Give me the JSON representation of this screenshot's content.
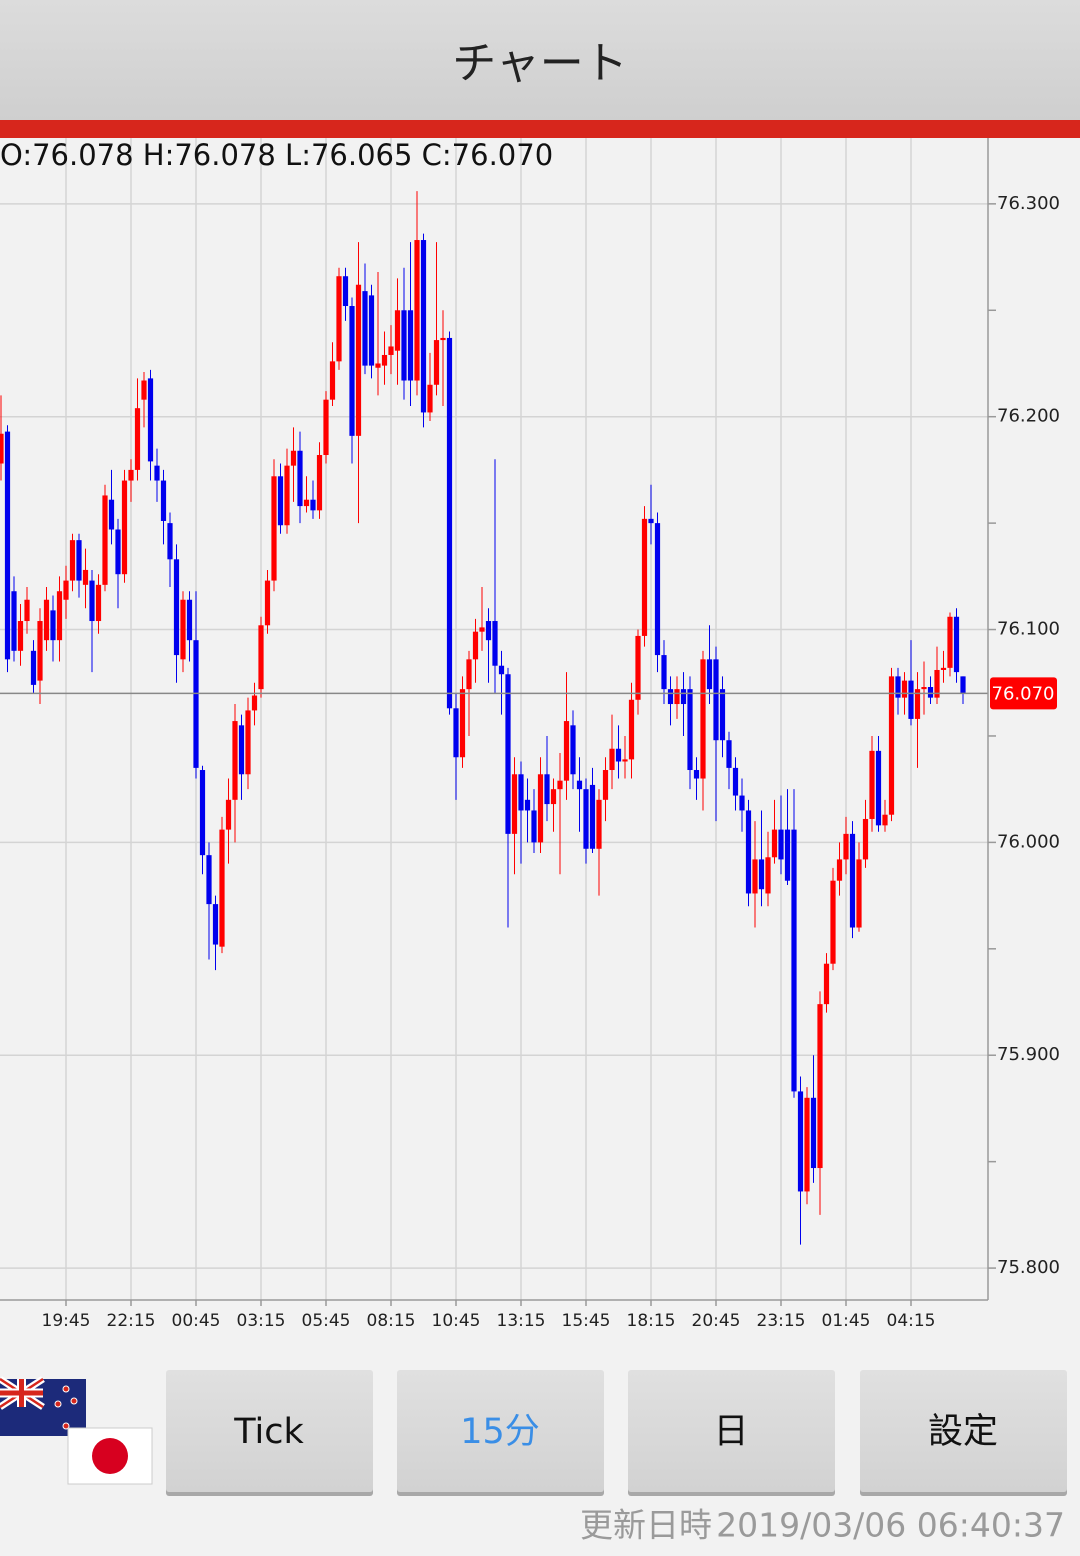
{
  "header": {
    "title": "チャート"
  },
  "ohlc_label": "O:76.078 H:76.078 L:76.065 C:76.070",
  "chart_data": {
    "type": "candlestick",
    "categories": [
      null,
      null,
      null,
      null,
      null,
      null,
      null,
      null,
      null,
      null,
      "19:45",
      null,
      null,
      null,
      null,
      null,
      null,
      null,
      null,
      null,
      "22:15",
      null,
      null,
      null,
      null,
      null,
      null,
      null,
      null,
      null,
      "00:45",
      null,
      null,
      null,
      null,
      null,
      null,
      null,
      null,
      null,
      "03:15",
      null,
      null,
      null,
      null,
      null,
      null,
      null,
      null,
      null,
      "05:45",
      null,
      null,
      null,
      null,
      null,
      null,
      null,
      null,
      null,
      "08:15",
      null,
      null,
      null,
      null,
      null,
      null,
      null,
      null,
      null,
      "10:45",
      null,
      null,
      null,
      null,
      null,
      null,
      null,
      null,
      null,
      "13:15",
      null,
      null,
      null,
      null,
      null,
      null,
      null,
      null,
      null,
      "15:45",
      null,
      null,
      null,
      null,
      null,
      null,
      null,
      null,
      null,
      "18:15",
      null,
      null,
      null,
      null,
      null,
      null,
      null,
      null,
      null,
      "20:45",
      null,
      null,
      null,
      null,
      null,
      null,
      null,
      null,
      null,
      "23:15",
      null,
      null,
      null,
      null,
      null,
      null,
      null,
      null,
      null,
      "01:45",
      null,
      null,
      null,
      null,
      null,
      null,
      null,
      null,
      null,
      "04:15",
      null,
      null,
      null,
      null,
      null,
      null,
      null,
      null
    ],
    "open": [
      76.178,
      76.193,
      76.118,
      76.09,
      76.104,
      76.09,
      76.076,
      76.095,
      76.109,
      76.095,
      76.114,
      76.123,
      76.142,
      76.121,
      76.123,
      76.104,
      76.121,
      76.161,
      76.147,
      76.126,
      76.17,
      76.175,
      76.208,
      76.218,
      76.177,
      76.17,
      76.15,
      76.133,
      76.086,
      76.114,
      76.095,
      76.034,
      75.994,
      75.971,
      75.951,
      76.006,
      76.02,
      76.055,
      76.032,
      76.062,
      76.072,
      76.102,
      76.123,
      76.172,
      76.149,
      76.177,
      76.184,
      76.158,
      76.161,
      76.156,
      76.182,
      76.208,
      76.226,
      76.266,
      76.252,
      76.191,
      76.259,
      76.257,
      76.223,
      76.224,
      76.229,
      76.231,
      76.25,
      76.25,
      76.217,
      76.283,
      76.202,
      76.215,
      76.236,
      76.237,
      76.063,
      76.04,
      76.072,
      76.086,
      76.099,
      76.104,
      76.104,
      76.083,
      76.079,
      76.004,
      76.032,
      76.02,
      76.015,
      76.0,
      76.032,
      76.018,
      76.025,
      76.029,
      76.055,
      76.029,
      76.025,
      76.027,
      75.997,
      76.02,
      76.034,
      76.044,
      76.038,
      76.039,
      76.067,
      76.097,
      76.152,
      76.15,
      76.088,
      76.072,
      76.065,
      76.072,
      76.072,
      76.034,
      76.03,
      76.086,
      76.086,
      76.072,
      76.048,
      76.035,
      76.022,
      76.015,
      75.976,
      75.992,
      75.976,
      75.993,
      76.006,
      76.006,
      76.006,
      75.883,
      75.836,
      75.88,
      75.847,
      75.924,
      75.943,
      75.982,
      75.992,
      76.004,
      75.96,
      75.992,
      76.011,
      76.043,
      76.008,
      76.013,
      76.078,
      76.068,
      76.076,
      76.058,
      76.072,
      76.073,
      76.068,
      76.081,
      76.082,
      76.106,
      76.078
    ],
    "high": [
      76.21,
      76.196,
      76.125,
      76.112,
      76.12,
      76.095,
      76.11,
      76.12,
      76.116,
      76.125,
      76.13,
      76.145,
      76.145,
      76.138,
      76.128,
      76.126,
      76.168,
      76.175,
      76.152,
      76.175,
      76.18,
      76.218,
      76.221,
      76.222,
      76.185,
      76.175,
      76.155,
      76.14,
      76.118,
      76.118,
      76.118,
      76.036,
      76.0,
      75.975,
      76.012,
      76.03,
      76.065,
      76.06,
      76.068,
      76.075,
      76.106,
      76.128,
      76.18,
      76.178,
      76.185,
      76.195,
      76.193,
      76.172,
      76.17,
      76.188,
      76.212,
      76.235,
      76.27,
      76.27,
      76.256,
      76.282,
      76.272,
      76.262,
      76.268,
      76.24,
      76.243,
      76.265,
      76.27,
      76.282,
      76.306,
      76.286,
      76.23,
      76.282,
      76.25,
      76.24,
      76.07,
      76.078,
      76.09,
      76.105,
      76.12,
      76.11,
      76.18,
      76.09,
      76.082,
      76.04,
      76.038,
      76.03,
      76.025,
      76.04,
      76.05,
      76.03,
      76.042,
      76.08,
      76.062,
      76.04,
      76.03,
      76.035,
      76.025,
      76.04,
      76.06,
      76.055,
      76.05,
      76.075,
      76.1,
      76.158,
      76.168,
      76.155,
      76.095,
      76.078,
      76.078,
      76.08,
      76.078,
      76.04,
      76.09,
      76.102,
      76.092,
      76.078,
      76.052,
      76.04,
      76.03,
      76.02,
      76.01,
      76.015,
      76.005,
      76.02,
      76.022,
      76.025,
      76.025,
      75.89,
      75.885,
      75.9,
      75.93,
      75.948,
      75.988,
      76.0,
      76.012,
      76.01,
      76.0,
      76.02,
      76.05,
      76.05,
      76.02,
      76.082,
      76.082,
      76.08,
      76.095,
      76.08,
      76.085,
      76.078,
      76.092,
      76.09,
      76.108,
      76.11,
      76.078
    ],
    "low": [
      76.17,
      76.08,
      76.085,
      76.083,
      76.098,
      76.07,
      76.065,
      76.09,
      76.085,
      76.085,
      76.105,
      76.118,
      76.115,
      76.11,
      76.08,
      76.098,
      76.118,
      76.14,
      76.11,
      76.122,
      76.16,
      76.17,
      76.195,
      76.17,
      76.16,
      76.14,
      76.12,
      76.075,
      76.08,
      76.085,
      76.03,
      75.985,
      75.945,
      75.94,
      75.948,
      75.99,
      76.0,
      76.02,
      76.025,
      76.055,
      76.068,
      76.098,
      76.118,
      76.145,
      76.145,
      76.16,
      76.15,
      76.155,
      76.152,
      76.152,
      76.178,
      76.205,
      76.222,
      76.245,
      76.178,
      76.15,
      76.22,
      76.218,
      76.21,
      76.215,
      76.22,
      76.215,
      76.208,
      76.205,
      76.21,
      76.195,
      76.198,
      76.21,
      76.205,
      76.06,
      76.02,
      76.035,
      76.05,
      76.075,
      76.09,
      76.075,
      76.07,
      76.06,
      75.96,
      75.985,
      75.99,
      76.0,
      75.995,
      75.995,
      76.01,
      76.005,
      75.985,
      76.02,
      76.025,
      76.005,
      75.99,
      75.995,
      75.975,
      76.01,
      76.025,
      76.03,
      76.03,
      76.03,
      76.06,
      76.092,
      76.14,
      76.08,
      76.065,
      76.055,
      76.058,
      76.05,
      76.025,
      76.02,
      76.015,
      76.065,
      76.01,
      76.04,
      76.025,
      76.015,
      76.005,
      75.97,
      75.96,
      75.97,
      75.97,
      75.99,
      75.985,
      75.98,
      75.88,
      75.811,
      75.83,
      75.84,
      75.825,
      75.92,
      75.94,
      75.975,
      75.985,
      75.955,
      75.958,
      75.988,
      76.005,
      76.005,
      76.005,
      76.01,
      76.06,
      76.06,
      76.055,
      76.035,
      76.06,
      76.065,
      76.065,
      76.075,
      76.078,
      76.075,
      76.065
    ],
    "close": [
      76.192,
      76.086,
      76.09,
      76.104,
      76.114,
      76.074,
      76.104,
      76.114,
      76.095,
      76.118,
      76.123,
      76.142,
      76.123,
      76.128,
      76.104,
      76.121,
      76.163,
      76.147,
      76.126,
      76.17,
      76.175,
      76.204,
      76.217,
      76.179,
      76.17,
      76.151,
      76.133,
      76.088,
      76.114,
      76.095,
      76.035,
      75.994,
      75.971,
      75.952,
      76.006,
      76.02,
      76.057,
      76.032,
      76.062,
      76.069,
      76.102,
      76.123,
      76.172,
      76.149,
      76.177,
      76.184,
      76.158,
      76.161,
      76.156,
      76.182,
      76.208,
      76.226,
      76.266,
      76.252,
      76.191,
      76.262,
      76.224,
      76.224,
      76.225,
      76.229,
      76.233,
      76.25,
      76.217,
      76.217,
      76.283,
      76.202,
      76.215,
      76.236,
      76.237,
      76.063,
      76.04,
      76.072,
      76.086,
      76.099,
      76.101,
      76.095,
      76.083,
      76.079,
      76.004,
      76.032,
      76.015,
      76.015,
      76.0,
      76.032,
      76.018,
      76.025,
      76.029,
      76.057,
      76.032,
      76.025,
      75.997,
      75.997,
      76.02,
      76.034,
      76.044,
      76.038,
      76.039,
      76.067,
      76.097,
      76.152,
      76.15,
      76.088,
      76.072,
      76.065,
      76.072,
      76.065,
      76.034,
      76.03,
      76.086,
      76.072,
      76.048,
      76.048,
      76.035,
      76.022,
      76.015,
      75.976,
      75.992,
      75.978,
      75.993,
      76.006,
      75.992,
      75.982,
      75.883,
      75.836,
      75.88,
      75.847,
      75.924,
      75.943,
      75.982,
      75.992,
      76.004,
      75.96,
      75.992,
      76.011,
      76.043,
      76.008,
      76.013,
      76.078,
      76.068,
      76.076,
      76.058,
      76.072,
      76.073,
      76.068,
      76.081,
      76.082,
      76.106,
      76.08,
      76.07
    ],
    "up_color": "#ff0000",
    "down_color": "#0000ee",
    "ylim": [
      75.785,
      76.33
    ],
    "yticks": [
      {
        "value": 75.8,
        "label": "75.800"
      },
      {
        "value": 75.9,
        "label": "75.900"
      },
      {
        "value": 76.0,
        "label": "76.000"
      },
      {
        "value": 76.1,
        "label": "76.100"
      },
      {
        "value": 76.2,
        "label": "76.200"
      },
      {
        "value": 76.3,
        "label": "76.300"
      }
    ],
    "y_minor_ticks": [
      75.85,
      75.95,
      76.05,
      76.15,
      76.25
    ],
    "grid": true,
    "last_price": {
      "value": 76.07,
      "label": "76.070"
    }
  },
  "buttons": [
    "Tick",
    "15分",
    "日",
    "設定"
  ],
  "active_button": 1,
  "footer": {
    "label": "更新日時",
    "timestamp": "2019/03/06 06:40:37"
  }
}
